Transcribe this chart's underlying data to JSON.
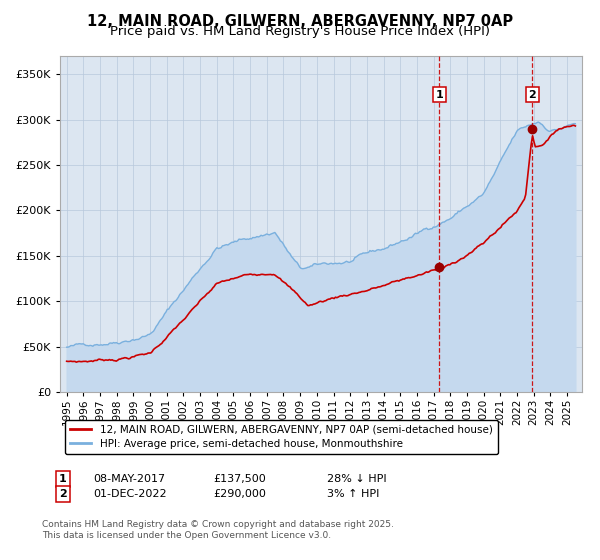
{
  "title": "12, MAIN ROAD, GILWERN, ABERGAVENNY, NP7 0AP",
  "subtitle": "Price paid vs. HM Land Registry's House Price Index (HPI)",
  "legend_line1": "12, MAIN ROAD, GILWERN, ABERGAVENNY, NP7 0AP (semi-detached house)",
  "legend_line2": "HPI: Average price, semi-detached house, Monmouthshire",
  "annotation1_date": "08-MAY-2017",
  "annotation1_price": "£137,500",
  "annotation1_hpi": "28% ↓ HPI",
  "annotation2_date": "01-DEC-2022",
  "annotation2_price": "£290,000",
  "annotation2_hpi": "3% ↑ HPI",
  "footnote1": "Contains HM Land Registry data © Crown copyright and database right 2025.",
  "footnote2": "This data is licensed under the Open Government Licence v3.0.",
  "hpi_color": "#7ab0de",
  "hpi_fill_color": "#c5d9ee",
  "price_color": "#cc0000",
  "marker_color": "#990000",
  "vline_color": "#cc0000",
  "background_color": "#dce6f1",
  "plot_bg": "#ffffff",
  "grid_color": "#b8c8dc",
  "ylim": [
    0,
    370000
  ],
  "yticks": [
    0,
    50000,
    100000,
    150000,
    200000,
    250000,
    300000,
    350000
  ],
  "title_fontsize": 10.5,
  "subtitle_fontsize": 9.5,
  "transaction1_x": 2017.35,
  "transaction1_y": 137500,
  "transaction2_x": 2022.92,
  "transaction2_y": 290000,
  "xlim_left": 1994.6,
  "xlim_right": 2025.9
}
